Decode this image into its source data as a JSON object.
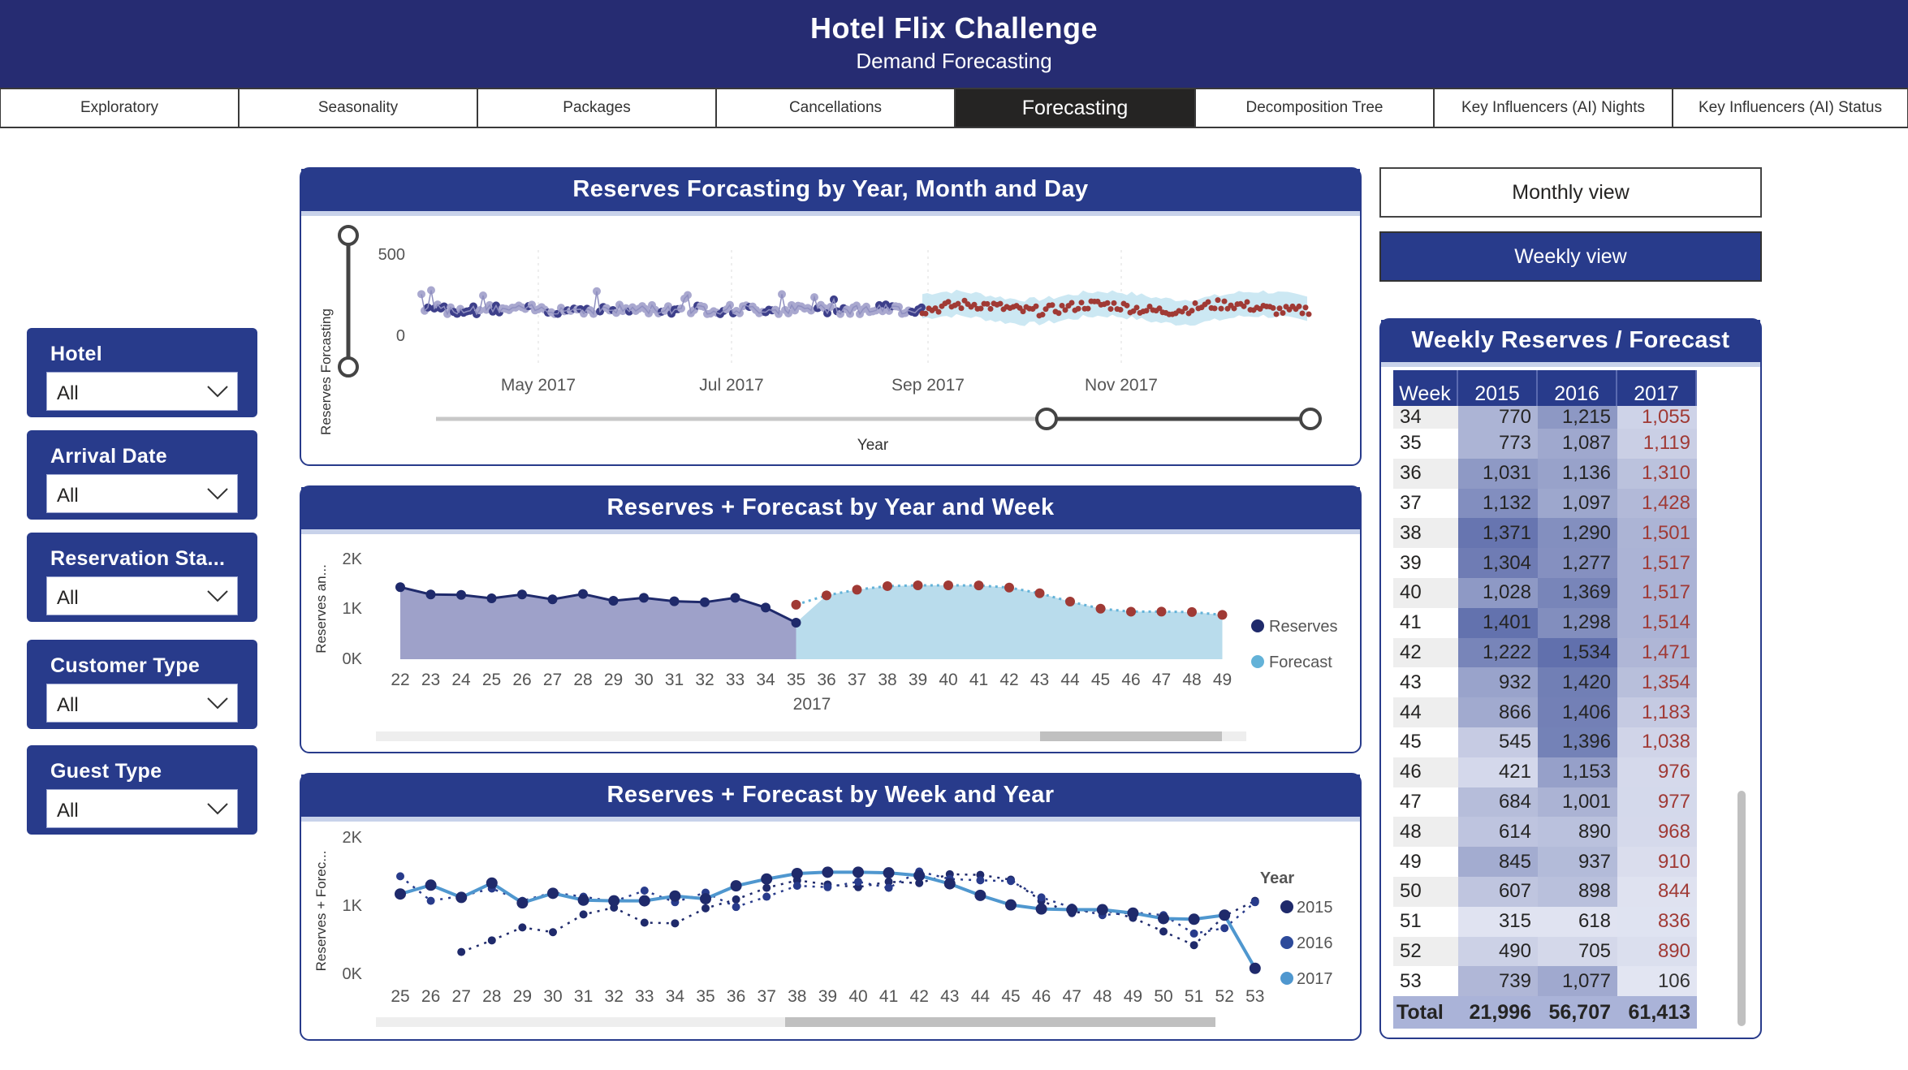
{
  "header": {
    "title": "Hotel Flix Challenge",
    "subtitle": "Demand Forecasting"
  },
  "tabs": [
    {
      "label": "Exploratory",
      "active": false
    },
    {
      "label": "Seasonality",
      "active": false
    },
    {
      "label": "Packages",
      "active": false
    },
    {
      "label": "Cancellations",
      "active": false
    },
    {
      "label": "Forecasting",
      "active": true
    },
    {
      "label": "Decomposition Tree",
      "active": false
    },
    {
      "label": "Key Influencers (AI) Nights",
      "active": false
    },
    {
      "label": "Key Influencers (AI) Status",
      "active": false
    }
  ],
  "slicers": [
    {
      "label": "Hotel",
      "value": "All"
    },
    {
      "label": "Arrival Date",
      "value": "All"
    },
    {
      "label": "Reservation Sta...",
      "value": "All"
    },
    {
      "label": "Customer Type",
      "value": "All"
    },
    {
      "label": "Guest Type",
      "value": "All"
    }
  ],
  "buttons": {
    "monthly": "Monthly view",
    "weekly": "Weekly view"
  },
  "colors": {
    "navy": "#283b8b",
    "header": "#262c72",
    "reserves": "#1f2a6b",
    "forecast": "#a03a35",
    "band": "#c6e6f2",
    "area": "#9ea1c9",
    "forecast_area": "#b9dcec"
  },
  "card1": {
    "title": "Reserves Forcasting by Year, Month and Day",
    "y_label": "Reserves Forcasting",
    "slider_label": "Year"
  },
  "card2": {
    "title": "Reserves + Forecast by Year and Week",
    "y_label": "Reserves an...",
    "x_sub": "2017"
  },
  "card3": {
    "title": "Reserves + Forecast by Week and Year",
    "y_label": "Reserves + Forec..."
  },
  "table": {
    "title": "Weekly Reserves / Forecast",
    "headers": [
      "Week",
      "2015",
      "2016",
      "2017"
    ],
    "partial_row": [
      "34",
      "770",
      "1,215",
      "1,055"
    ],
    "rows": [
      [
        "35",
        "773",
        "1,087",
        "1,119"
      ],
      [
        "36",
        "1,031",
        "1,136",
        "1,310"
      ],
      [
        "37",
        "1,132",
        "1,097",
        "1,428"
      ],
      [
        "38",
        "1,371",
        "1,290",
        "1,501"
      ],
      [
        "39",
        "1,304",
        "1,277",
        "1,517"
      ],
      [
        "40",
        "1,028",
        "1,369",
        "1,517"
      ],
      [
        "41",
        "1,401",
        "1,298",
        "1,514"
      ],
      [
        "42",
        "1,222",
        "1,534",
        "1,471"
      ],
      [
        "43",
        "932",
        "1,420",
        "1,354"
      ],
      [
        "44",
        "866",
        "1,406",
        "1,183"
      ],
      [
        "45",
        "545",
        "1,396",
        "1,038"
      ],
      [
        "46",
        "421",
        "1,153",
        "976"
      ],
      [
        "47",
        "684",
        "1,001",
        "977"
      ],
      [
        "48",
        "614",
        "890",
        "968"
      ],
      [
        "49",
        "845",
        "937",
        "910"
      ],
      [
        "50",
        "607",
        "898",
        "844"
      ],
      [
        "51",
        "315",
        "618",
        "836"
      ],
      [
        "52",
        "490",
        "705",
        "890"
      ],
      [
        "53",
        "739",
        "1,077",
        "106"
      ]
    ],
    "total": [
      "Total",
      "21,996",
      "56,707",
      "61,413"
    ]
  },
  "chart_data": [
    {
      "type": "line",
      "title": "Reserves Forcasting by Year, Month and Day",
      "ylabel": "Reserves Forcasting",
      "xlabel": "Year",
      "x_ticks": [
        "May 2017",
        "Jul 2017",
        "Sep 2017",
        "Nov 2017"
      ],
      "y_ticks": [
        "0",
        "500"
      ],
      "series": [
        {
          "name": "Reserves",
          "approx_level": 170
        },
        {
          "name": "Forecast",
          "approx_level": 180
        }
      ]
    },
    {
      "type": "area",
      "title": "Reserves + Forecast by Year and Week",
      "ylabel": "Reserves an...",
      "x": [
        "22",
        "23",
        "24",
        "25",
        "26",
        "27",
        "28",
        "29",
        "30",
        "31",
        "32",
        "33",
        "34",
        "35",
        "36",
        "37",
        "38",
        "39",
        "40",
        "41",
        "42",
        "43",
        "44",
        "45",
        "46",
        "47",
        "48",
        "49"
      ],
      "x_group": "2017",
      "y_ticks": [
        "0K",
        "1K",
        "2K"
      ],
      "series": [
        {
          "name": "Reserves",
          "values": [
            1480,
            1330,
            1320,
            1250,
            1330,
            1230,
            1340,
            1200,
            1260,
            1190,
            1170,
            1260,
            1060,
            750,
            null,
            null,
            null,
            null,
            null,
            null,
            null,
            null,
            null,
            null,
            null,
            null,
            null,
            null
          ]
        },
        {
          "name": "Forecast",
          "values": [
            null,
            null,
            null,
            null,
            null,
            null,
            null,
            null,
            null,
            null,
            null,
            null,
            null,
            1119,
            1310,
            1428,
            1501,
            1517,
            1517,
            1514,
            1471,
            1354,
            1183,
            1038,
            976,
            977,
            968,
            910
          ]
        }
      ],
      "legend": [
        "Reserves",
        "Forecast"
      ]
    },
    {
      "type": "line",
      "title": "Reserves + Forecast by Week and Year",
      "ylabel": "Reserves + Forec...",
      "x": [
        "25",
        "26",
        "27",
        "28",
        "29",
        "30",
        "31",
        "32",
        "33",
        "34",
        "35",
        "36",
        "37",
        "38",
        "39",
        "40",
        "41",
        "42",
        "43",
        "44",
        "45",
        "46",
        "47",
        "48",
        "49",
        "50",
        "51",
        "52",
        "53"
      ],
      "y_ticks": [
        "0K",
        "1K",
        "2K"
      ],
      "legend_title": "Year",
      "series": [
        {
          "name": "2015",
          "values": [
            null,
            null,
            350,
            520,
            710,
            640,
            900,
            1000,
            780,
            770,
            990,
            1120,
            1290,
            1400,
            1340,
            1300,
            1380,
            1360,
            1490,
            1480,
            1410,
            1100,
            920,
            970,
            850,
            650,
            450,
            880,
            1100
          ]
        },
        {
          "name": "2016",
          "values": [
            1460,
            1100,
            1170,
            1280,
            1100,
            1220,
            1160,
            1090,
            1250,
            1080,
            1220,
            1010,
            1160,
            1320,
            1300,
            1380,
            1290,
            1530,
            1420,
            1400,
            1390,
            1150,
            1000,
            890,
            930,
            890,
            620,
            700,
            1080
          ]
        },
        {
          "name": "2017",
          "values": [
            1200,
            1330,
            1150,
            1360,
            1070,
            1210,
            1110,
            1100,
            1100,
            1170,
            1130,
            1320,
            1420,
            1500,
            1520,
            1520,
            1510,
            1470,
            1350,
            1180,
            1040,
            980,
            970,
            970,
            920,
            840,
            830,
            890,
            110
          ]
        }
      ]
    }
  ]
}
